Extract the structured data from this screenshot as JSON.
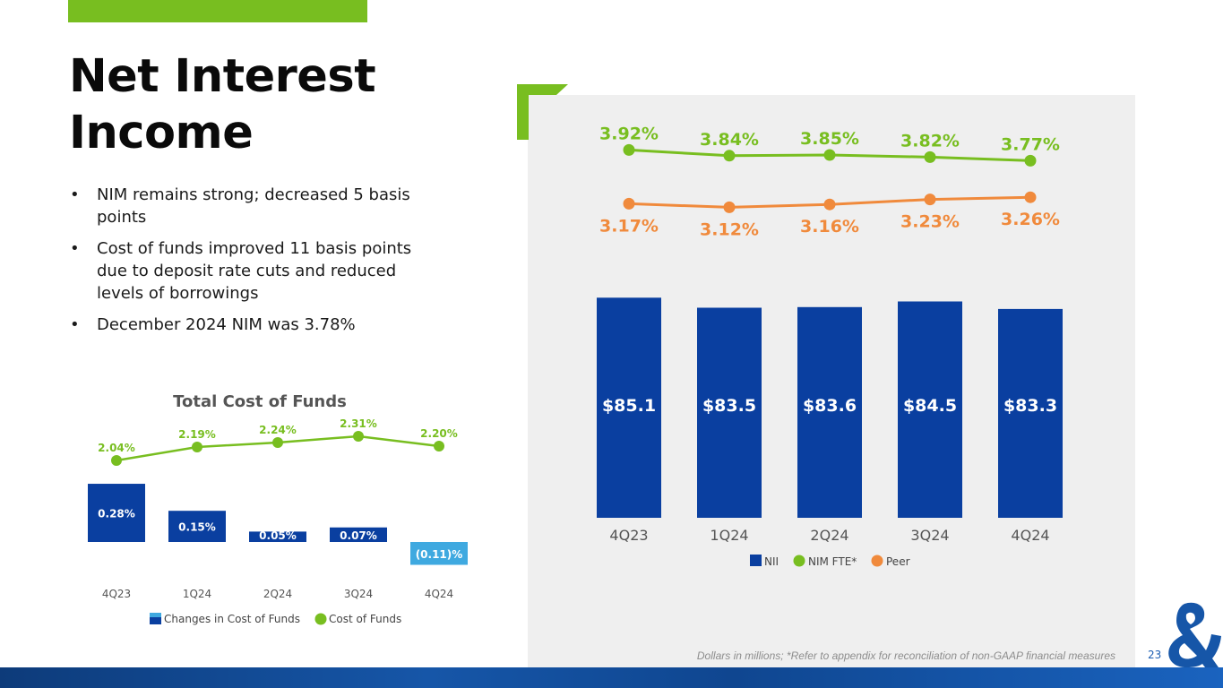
{
  "slide": {
    "title": "Net Interest Income",
    "bullets": [
      "NIM remains strong; decreased 5 basis points",
      "Cost of funds improved 11 basis points due to deposit rate cuts and reduced levels of borrowings",
      "December 2024 NIM was 3.78%"
    ],
    "bullet_glyph": "•",
    "footnote": "Dollars in millions; *Refer to appendix for reconciliation of non-GAAP financial measures",
    "page_number": "23",
    "colors": {
      "accent_green": "#78BE20",
      "nii_bar": "#0A3FA0",
      "nim_line": "#78BE20",
      "peer_line": "#F08A3C",
      "cost_bar": "#0A3FA0",
      "negative_bar": "#3FA9E0",
      "panel": "#EFEFEF"
    },
    "icons": [
      "bullet-dot-icon",
      "green-corner-bracket-icon",
      "ampersand-logo-icon"
    ]
  },
  "chart_data": [
    {
      "id": "nii",
      "type": "bar",
      "title": "",
      "categories": [
        "4Q23",
        "1Q24",
        "2Q24",
        "3Q24",
        "4Q24"
      ],
      "series": [
        {
          "name": "NII",
          "type": "bar",
          "values": [
            85.1,
            83.5,
            83.6,
            84.5,
            83.3
          ],
          "labels": [
            "$85.1",
            "$83.5",
            "$83.6",
            "$84.5",
            "$83.3"
          ]
        },
        {
          "name": "NIM FTE*",
          "type": "line",
          "values": [
            3.92,
            3.84,
            3.85,
            3.82,
            3.77
          ],
          "labels": [
            "3.92%",
            "3.84%",
            "3.85%",
            "3.82%",
            "3.77%"
          ]
        },
        {
          "name": "Peer",
          "type": "line",
          "values": [
            3.17,
            3.12,
            3.16,
            3.23,
            3.26
          ],
          "labels": [
            "3.17%",
            "3.12%",
            "3.16%",
            "3.23%",
            "3.26%"
          ]
        }
      ],
      "legend": [
        "NII",
        "NIM FTE*",
        "Peer"
      ],
      "legend_position": "bottom",
      "grid": false
    },
    {
      "id": "cost",
      "type": "bar",
      "title": "Total Cost of Funds",
      "categories": [
        "4Q23",
        "1Q24",
        "2Q24",
        "3Q24",
        "4Q24"
      ],
      "series": [
        {
          "name": "Changes in Cost of Funds",
          "type": "bar",
          "values": [
            0.28,
            0.15,
            0.05,
            0.07,
            -0.11
          ],
          "labels": [
            "0.28%",
            "0.15%",
            "0.05%",
            "0.07%",
            "(0.11)%"
          ]
        },
        {
          "name": "Cost of Funds",
          "type": "line",
          "values": [
            2.04,
            2.19,
            2.24,
            2.31,
            2.2
          ],
          "labels": [
            "2.04%",
            "2.19%",
            "2.24%",
            "2.31%",
            "2.20%"
          ]
        }
      ],
      "legend": [
        "Changes in Cost of Funds",
        "Cost of Funds"
      ],
      "legend_position": "bottom",
      "grid": false
    }
  ]
}
